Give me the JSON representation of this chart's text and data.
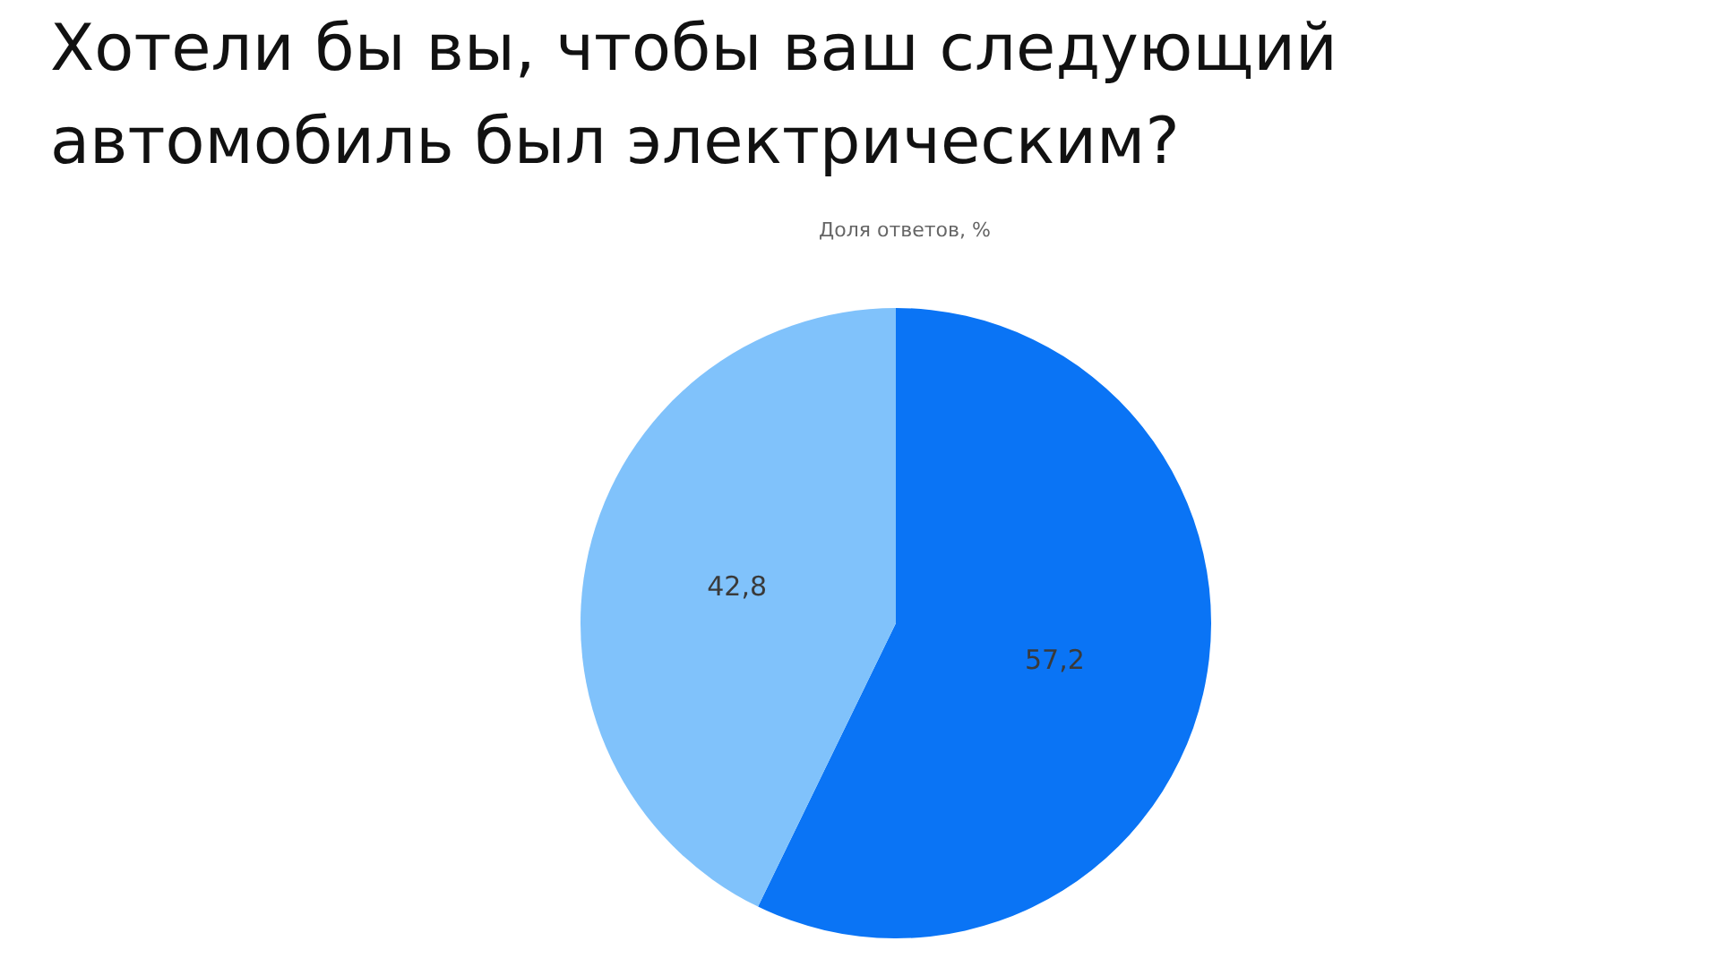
{
  "chart_data": {
    "type": "pie",
    "title": "Хотели бы вы, чтобы ваш следующий автомобиль был электрическим?",
    "subtitle": "Доля ответов, %",
    "categories": [
      null,
      null
    ],
    "values": [
      57.2,
      42.8
    ],
    "colors": [
      "#0a74f5",
      "#80c2fb"
    ],
    "value_labels": [
      "57,2",
      "42,8"
    ]
  }
}
